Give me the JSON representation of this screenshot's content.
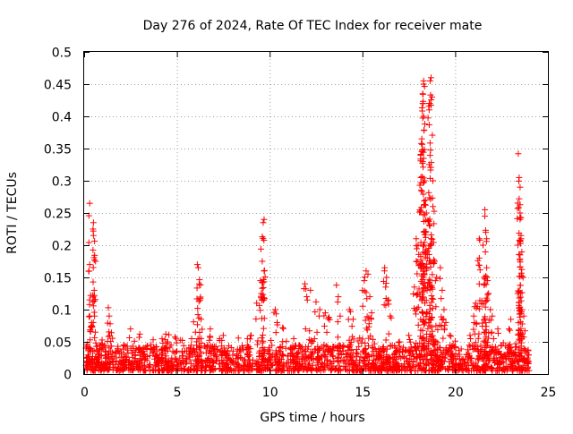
{
  "chart_data": {
    "type": "scatter",
    "title": "Day 276 of 2024, Rate Of TEC Index for receiver mate",
    "xlabel": "GPS time / hours",
    "ylabel": "ROTI / TECUs",
    "xlim": [
      0,
      25
    ],
    "ylim": [
      0,
      0.5
    ],
    "xticks": [
      "0",
      "5",
      "10",
      "15",
      "20",
      "25"
    ],
    "yticks": [
      "0",
      "0.05",
      "0.1",
      "0.15",
      "0.2",
      "0.25",
      "0.3",
      "0.35",
      "0.4",
      "0.45",
      "0.5"
    ],
    "grid": true,
    "marker": "plus",
    "color": "#ff0000",
    "baseline_band": [
      0.005,
      0.045
    ],
    "series": [
      {
        "name": "ROTI",
        "points": [
          [
            0.3,
            0.265
          ],
          [
            0.3,
            0.17
          ],
          [
            0.35,
            0.122
          ],
          [
            0.55,
            0.122
          ],
          [
            0.5,
            0.235
          ],
          [
            0.5,
            0.215
          ],
          [
            0.55,
            0.177
          ],
          [
            0.3,
            0.09
          ],
          [
            0.4,
            0.075
          ],
          [
            0.6,
            0.065
          ],
          [
            1.3,
            0.103
          ],
          [
            1.35,
            0.09
          ],
          [
            1.4,
            0.078
          ],
          [
            2.5,
            0.07
          ],
          [
            3.0,
            0.062
          ],
          [
            4.2,
            0.055
          ],
          [
            4.4,
            0.062
          ],
          [
            4.5,
            0.05
          ],
          [
            5.9,
            0.081
          ],
          [
            6.0,
            0.065
          ],
          [
            6.1,
            0.17
          ],
          [
            6.15,
            0.165
          ],
          [
            6.2,
            0.14
          ],
          [
            6.25,
            0.115
          ],
          [
            6.3,
            0.085
          ],
          [
            6.8,
            0.07
          ],
          [
            7.3,
            0.055
          ],
          [
            7.5,
            0.06
          ],
          [
            8.8,
            0.055
          ],
          [
            9.0,
            0.06
          ],
          [
            9.3,
            0.11
          ],
          [
            9.5,
            0.145
          ],
          [
            9.6,
            0.175
          ],
          [
            9.6,
            0.213
          ],
          [
            9.65,
            0.235
          ],
          [
            9.7,
            0.24
          ],
          [
            9.7,
            0.16
          ],
          [
            9.55,
            0.125
          ],
          [
            10.3,
            0.1
          ],
          [
            10.4,
            0.08
          ],
          [
            10.7,
            0.072
          ],
          [
            11.3,
            0.055
          ],
          [
            11.9,
            0.14
          ],
          [
            12.0,
            0.12
          ],
          [
            12.2,
            0.13
          ],
          [
            12.5,
            0.112
          ],
          [
            12.7,
            0.1
          ],
          [
            13.0,
            0.095
          ],
          [
            13.2,
            0.088
          ],
          [
            13.6,
            0.138
          ],
          [
            13.7,
            0.12
          ],
          [
            13.8,
            0.09
          ],
          [
            14.3,
            0.1
          ],
          [
            14.5,
            0.085
          ],
          [
            15.0,
            0.13
          ],
          [
            15.1,
            0.145
          ],
          [
            15.2,
            0.16
          ],
          [
            15.3,
            0.155
          ],
          [
            15.4,
            0.12
          ],
          [
            15.5,
            0.095
          ],
          [
            16.2,
            0.165
          ],
          [
            16.3,
            0.15
          ],
          [
            16.4,
            0.115
          ],
          [
            16.5,
            0.09
          ],
          [
            17.0,
            0.05
          ],
          [
            17.5,
            0.06
          ],
          [
            17.8,
            0.135
          ],
          [
            17.9,
            0.175
          ],
          [
            17.9,
            0.21
          ],
          [
            18.0,
            0.2
          ],
          [
            18.1,
            0.255
          ],
          [
            18.15,
            0.305
          ],
          [
            18.2,
            0.345
          ],
          [
            18.2,
            0.365
          ],
          [
            18.25,
            0.42
          ],
          [
            18.25,
            0.435
          ],
          [
            18.3,
            0.45
          ],
          [
            18.3,
            0.455
          ],
          [
            18.3,
            0.4
          ],
          [
            18.35,
            0.3
          ],
          [
            18.4,
            0.27
          ],
          [
            18.45,
            0.25
          ],
          [
            18.4,
            0.22
          ],
          [
            18.5,
            0.18
          ],
          [
            18.6,
            0.42
          ],
          [
            18.6,
            0.41
          ],
          [
            18.65,
            0.455
          ],
          [
            18.7,
            0.46
          ],
          [
            18.75,
            0.43
          ],
          [
            18.8,
            0.3
          ],
          [
            18.8,
            0.26
          ],
          [
            18.7,
            0.2
          ],
          [
            18.9,
            0.175
          ],
          [
            19.0,
            0.15
          ],
          [
            19.2,
            0.165
          ],
          [
            19.3,
            0.13
          ],
          [
            19.4,
            0.1
          ],
          [
            19.5,
            0.08
          ],
          [
            19.7,
            0.06
          ],
          [
            20.8,
            0.06
          ],
          [
            21.0,
            0.09
          ],
          [
            21.1,
            0.11
          ],
          [
            21.2,
            0.105
          ],
          [
            21.3,
            0.18
          ],
          [
            21.3,
            0.21
          ],
          [
            21.5,
            0.2
          ],
          [
            21.6,
            0.255
          ],
          [
            21.6,
            0.245
          ],
          [
            21.65,
            0.22
          ],
          [
            21.7,
            0.21
          ],
          [
            21.7,
            0.165
          ],
          [
            21.75,
            0.145
          ],
          [
            21.8,
            0.125
          ],
          [
            21.9,
            0.1
          ],
          [
            22.0,
            0.09
          ],
          [
            22.3,
            0.07
          ],
          [
            22.9,
            0.07
          ],
          [
            23.0,
            0.085
          ],
          [
            23.4,
            0.342
          ],
          [
            23.45,
            0.305
          ],
          [
            23.5,
            0.29
          ],
          [
            23.45,
            0.272
          ],
          [
            23.5,
            0.25
          ],
          [
            23.5,
            0.24
          ],
          [
            23.55,
            0.215
          ],
          [
            23.55,
            0.21
          ],
          [
            23.5,
            0.185
          ],
          [
            23.6,
            0.152
          ],
          [
            23.6,
            0.1
          ],
          [
            23.7,
            0.09
          ]
        ]
      }
    ]
  }
}
